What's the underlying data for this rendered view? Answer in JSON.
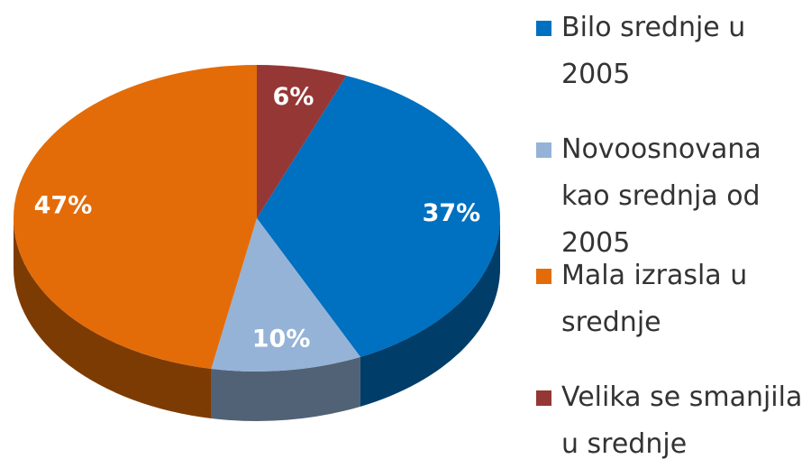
{
  "chart_data": {
    "type": "pie3d",
    "series": [
      {
        "name": "Bilo srednje u 2005",
        "color": "#0070c0"
      },
      {
        "name": "Novoosnovana kao srednja od 2005",
        "color": "#95b3d7"
      },
      {
        "name": "Mala izrasla u srednje",
        "color": "#e36c09"
      },
      {
        "name": "Velika se smanjila u srednje",
        "color": "#953735"
      }
    ],
    "values": [
      37,
      10,
      47,
      6
    ],
    "value_labels": [
      "37%",
      "10%",
      "47%",
      "6%"
    ],
    "legend": "right"
  }
}
